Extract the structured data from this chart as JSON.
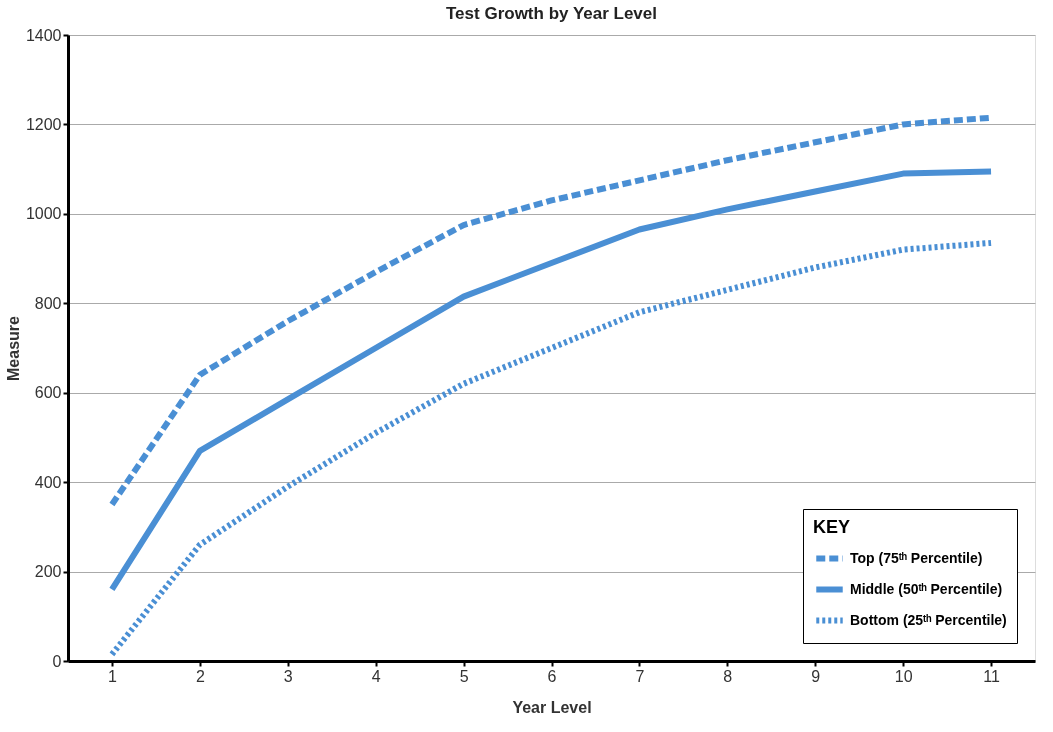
{
  "chart_data": {
    "type": "line",
    "title": "Test Growth by Year Level",
    "xlabel": "Year Level",
    "ylabel": "Measure",
    "legend_title": "KEY",
    "x": [
      1,
      2,
      3,
      4,
      5,
      6,
      7,
      8,
      9,
      10,
      11
    ],
    "series": [
      {
        "name": "Top (75ᵗʰ Percentile)",
        "color": "#4a8fd4",
        "line_style": "dashed",
        "values": [
          350,
          640,
          760,
          870,
          975,
          1030,
          1075,
          1120,
          1160,
          1200,
          1215
        ]
      },
      {
        "name": "Middle (50ᵗʰ Percentile)",
        "color": "#4a8fd4",
        "line_style": "solid",
        "values": [
          160,
          470,
          585,
          700,
          815,
          890,
          965,
          1010,
          1050,
          1090,
          1095
        ]
      },
      {
        "name": "Bottom (25ᵗʰ Percentile)",
        "color": "#4a8fd4",
        "line_style": "dotted",
        "values": [
          15,
          260,
          390,
          510,
          620,
          700,
          780,
          830,
          880,
          920,
          935
        ]
      }
    ],
    "xlim": [
      0.5,
      11.5
    ],
    "xticks": [
      1,
      2,
      3,
      4,
      5,
      6,
      7,
      8,
      9,
      10,
      11
    ],
    "ylim": [
      0,
      1400
    ],
    "yticks": [
      0,
      200,
      400,
      600,
      800,
      1000,
      1200,
      1400
    ],
    "grid": "y",
    "legend": "bottom right",
    "marker": "none"
  }
}
